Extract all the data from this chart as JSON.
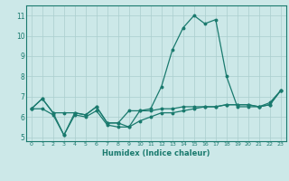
{
  "xlabel": "Humidex (Indice chaleur)",
  "x": [
    0,
    1,
    2,
    3,
    4,
    5,
    6,
    7,
    8,
    9,
    10,
    11,
    12,
    13,
    14,
    15,
    16,
    17,
    18,
    19,
    20,
    21,
    22,
    23
  ],
  "line1": [
    6.4,
    6.9,
    6.2,
    6.2,
    6.2,
    6.1,
    6.5,
    5.7,
    5.7,
    6.3,
    6.3,
    6.3,
    6.4,
    6.4,
    6.5,
    6.5,
    6.5,
    6.5,
    6.6,
    6.6,
    6.6,
    6.5,
    6.6,
    7.3
  ],
  "line2": [
    6.4,
    6.9,
    6.2,
    5.1,
    6.2,
    6.1,
    6.5,
    5.7,
    5.7,
    5.5,
    6.3,
    6.4,
    7.5,
    9.3,
    10.4,
    11.0,
    10.6,
    10.8,
    8.0,
    6.5,
    6.5,
    6.5,
    6.6,
    7.3
  ],
  "line3": [
    6.4,
    6.4,
    6.1,
    5.1,
    6.1,
    6.0,
    6.3,
    5.6,
    5.5,
    5.5,
    5.8,
    6.0,
    6.2,
    6.2,
    6.3,
    6.4,
    6.5,
    6.5,
    6.6,
    6.6,
    6.6,
    6.5,
    6.7,
    7.3
  ],
  "ylim": [
    4.8,
    11.5
  ],
  "yticks": [
    5,
    6,
    7,
    8,
    9,
    10,
    11
  ],
  "xticks": [
    0,
    1,
    2,
    3,
    4,
    5,
    6,
    7,
    8,
    9,
    10,
    11,
    12,
    13,
    14,
    15,
    16,
    17,
    18,
    19,
    20,
    21,
    22,
    23
  ],
  "line_color": "#1a7a6e",
  "bg_color": "#cce8e8",
  "grid_color": "#aacece"
}
